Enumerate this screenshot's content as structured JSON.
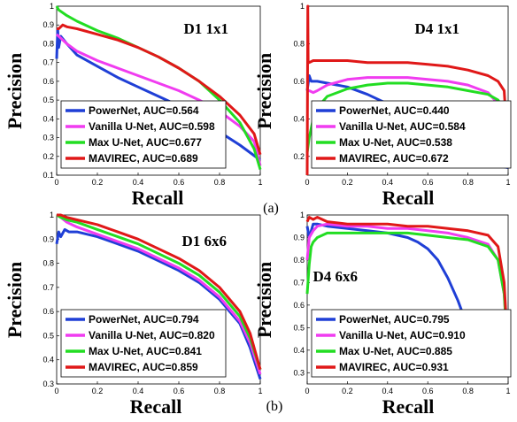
{
  "captions": {
    "top": "(a)",
    "bottom": "(b)"
  },
  "colors": {
    "PowerNet": "#1f3fd6",
    "Vanilla U-Net": "#f03cf0",
    "Max U-Net": "#22dd22",
    "MAVIREC": "#e01818"
  },
  "chart_data": [
    {
      "type": "line",
      "title": "D1 1x1",
      "xlabel": "Recall",
      "ylabel": "Precision",
      "xlim": [
        0,
        1
      ],
      "ylim": [
        0.1,
        1.0
      ],
      "xticks": [
        "0",
        "0.2",
        "0.4",
        "0.6",
        "0.8",
        "1"
      ],
      "yticks": [
        "0.1",
        "0.2",
        "0.3",
        "0.4",
        "0.5",
        "0.6",
        "0.7",
        "0.8",
        "0.9",
        "1"
      ],
      "legend_position": "bottom-left",
      "series": [
        {
          "name": "PowerNet",
          "legend": "PowerNet, AUC=0.564",
          "x": [
            0,
            0.005,
            0.01,
            0.02,
            0.05,
            0.1,
            0.2,
            0.3,
            0.4,
            0.5,
            0.6,
            0.7,
            0.8,
            0.9,
            1.0
          ],
          "y": [
            0.72,
            0.88,
            0.78,
            0.84,
            0.8,
            0.74,
            0.68,
            0.62,
            0.57,
            0.52,
            0.47,
            0.4,
            0.33,
            0.26,
            0.18
          ]
        },
        {
          "name": "Vanilla U-Net",
          "legend": "Vanilla U-Net, AUC=0.598",
          "x": [
            0,
            0.01,
            0.05,
            0.1,
            0.2,
            0.3,
            0.4,
            0.5,
            0.6,
            0.7,
            0.8,
            0.9,
            0.97,
            1.0
          ],
          "y": [
            0.85,
            0.84,
            0.8,
            0.76,
            0.71,
            0.67,
            0.63,
            0.59,
            0.55,
            0.5,
            0.44,
            0.36,
            0.28,
            0.15
          ]
        },
        {
          "name": "Max U-Net",
          "legend": "Max U-Net, AUC=0.677",
          "x": [
            0,
            0.01,
            0.05,
            0.1,
            0.2,
            0.3,
            0.4,
            0.5,
            0.6,
            0.7,
            0.8,
            0.9,
            0.97,
            1.0
          ],
          "y": [
            1.0,
            0.98,
            0.95,
            0.92,
            0.87,
            0.83,
            0.78,
            0.73,
            0.67,
            0.6,
            0.5,
            0.38,
            0.24,
            0.13
          ]
        },
        {
          "name": "MAVIREC",
          "legend": "MAVIREC, AUC=0.689",
          "x": [
            0,
            0.01,
            0.03,
            0.05,
            0.1,
            0.2,
            0.3,
            0.4,
            0.5,
            0.6,
            0.7,
            0.8,
            0.9,
            0.97,
            1.0
          ],
          "y": [
            0.88,
            0.88,
            0.9,
            0.89,
            0.88,
            0.85,
            0.82,
            0.78,
            0.73,
            0.67,
            0.6,
            0.52,
            0.42,
            0.32,
            0.21
          ]
        }
      ]
    },
    {
      "type": "line",
      "title": "D4 1x1",
      "xlabel": "Recall",
      "ylabel": "Precision",
      "xlim": [
        0,
        1
      ],
      "ylim": [
        0.1,
        1.0
      ],
      "xticks": [
        "0",
        "0.2",
        "0.4",
        "0.6",
        "0.8",
        "1"
      ],
      "yticks": [
        "0.2",
        "0.4",
        "0.6",
        "0.8",
        "1"
      ],
      "legend_position": "bottom-left",
      "series": [
        {
          "name": "PowerNet",
          "legend": "PowerNet, AUC=0.440",
          "x": [
            0,
            0.01,
            0.02,
            0.05,
            0.1,
            0.2,
            0.3,
            0.4,
            0.5,
            0.6,
            0.7,
            0.8,
            0.9,
            0.95,
            1.0
          ],
          "y": [
            0.55,
            0.63,
            0.6,
            0.6,
            0.59,
            0.57,
            0.53,
            0.48,
            0.42,
            0.35,
            0.28,
            0.21,
            0.17,
            0.15,
            0.14
          ]
        },
        {
          "name": "Vanilla U-Net",
          "legend": "Vanilla U-Net, AUC=0.584",
          "x": [
            0,
            0.01,
            0.03,
            0.05,
            0.1,
            0.2,
            0.3,
            0.4,
            0.5,
            0.6,
            0.7,
            0.8,
            0.9,
            0.95,
            1.0
          ],
          "y": [
            0.55,
            0.55,
            0.54,
            0.55,
            0.58,
            0.61,
            0.62,
            0.62,
            0.62,
            0.61,
            0.6,
            0.58,
            0.54,
            0.48,
            0.22
          ]
        },
        {
          "name": "Max U-Net",
          "legend": "Max U-Net, AUC=0.538",
          "x": [
            0,
            0.01,
            0.03,
            0.05,
            0.1,
            0.2,
            0.3,
            0.4,
            0.5,
            0.6,
            0.7,
            0.8,
            0.9,
            0.95,
            0.98,
            1.0
          ],
          "y": [
            0.22,
            0.3,
            0.4,
            0.46,
            0.52,
            0.56,
            0.58,
            0.59,
            0.59,
            0.58,
            0.57,
            0.55,
            0.53,
            0.5,
            0.45,
            0.18
          ]
        },
        {
          "name": "MAVIREC",
          "legend": "MAVIREC, AUC=0.672",
          "x": [
            0,
            0.003,
            0.005,
            0.01,
            0.03,
            0.05,
            0.1,
            0.2,
            0.3,
            0.4,
            0.5,
            0.6,
            0.7,
            0.8,
            0.9,
            0.95,
            0.98,
            1.0
          ],
          "y": [
            0.1,
            1.0,
            0.7,
            0.7,
            0.71,
            0.71,
            0.71,
            0.71,
            0.7,
            0.7,
            0.7,
            0.69,
            0.68,
            0.66,
            0.63,
            0.6,
            0.55,
            0.22
          ]
        }
      ]
    },
    {
      "type": "line",
      "title": "D1 6x6",
      "xlabel": "Recall",
      "ylabel": "Precision",
      "xlim": [
        0,
        1
      ],
      "ylim": [
        0.3,
        1.0
      ],
      "xticks": [
        "0",
        "0.2",
        "0.4",
        "0.6",
        "0.8",
        "1"
      ],
      "yticks": [
        "0.3",
        "0.4",
        "0.5",
        "0.6",
        "0.7",
        "0.8",
        "0.9",
        "1"
      ],
      "legend_position": "bottom-left",
      "series": [
        {
          "name": "PowerNet",
          "legend": "PowerNet, AUC=0.794",
          "x": [
            0,
            0.01,
            0.02,
            0.04,
            0.06,
            0.1,
            0.2,
            0.3,
            0.4,
            0.5,
            0.6,
            0.7,
            0.8,
            0.9,
            0.95,
            1.0
          ],
          "y": [
            0.88,
            0.93,
            0.91,
            0.94,
            0.93,
            0.93,
            0.91,
            0.88,
            0.85,
            0.81,
            0.77,
            0.72,
            0.65,
            0.55,
            0.45,
            0.32
          ]
        },
        {
          "name": "Vanilla U-Net",
          "legend": "Vanilla U-Net, AUC=0.820",
          "x": [
            0,
            0.02,
            0.05,
            0.1,
            0.2,
            0.3,
            0.4,
            0.5,
            0.6,
            0.7,
            0.8,
            0.9,
            0.95,
            1.0
          ],
          "y": [
            1.0,
            0.99,
            0.97,
            0.95,
            0.92,
            0.89,
            0.86,
            0.82,
            0.78,
            0.73,
            0.66,
            0.56,
            0.47,
            0.34
          ]
        },
        {
          "name": "Max U-Net",
          "legend": "Max U-Net, AUC=0.841",
          "x": [
            0,
            0.02,
            0.05,
            0.1,
            0.2,
            0.3,
            0.4,
            0.5,
            0.6,
            0.7,
            0.8,
            0.9,
            0.95,
            1.0
          ],
          "y": [
            1.0,
            0.99,
            0.98,
            0.97,
            0.94,
            0.91,
            0.88,
            0.84,
            0.8,
            0.75,
            0.68,
            0.58,
            0.49,
            0.36
          ]
        },
        {
          "name": "MAVIREC",
          "legend": "MAVIREC, AUC=0.859",
          "x": [
            0,
            0.02,
            0.05,
            0.1,
            0.2,
            0.3,
            0.4,
            0.5,
            0.6,
            0.7,
            0.8,
            0.9,
            0.95,
            1.0
          ],
          "y": [
            1.0,
            1.0,
            0.99,
            0.98,
            0.96,
            0.93,
            0.9,
            0.86,
            0.82,
            0.77,
            0.7,
            0.6,
            0.51,
            0.36
          ]
        }
      ]
    },
    {
      "type": "line",
      "title": "D4 6x6",
      "xlabel": "Recall",
      "ylabel": "Precision",
      "xlim": [
        0,
        1
      ],
      "ylim": [
        0.25,
        1.0
      ],
      "xticks": [
        "0",
        "0.2",
        "0.4",
        "0.6",
        "0.8",
        "1"
      ],
      "yticks": [
        "0.3",
        "0.4",
        "0.5",
        "0.6",
        "0.7",
        "0.8",
        "0.9",
        "1"
      ],
      "legend_position": "bottom-left",
      "series": [
        {
          "name": "PowerNet",
          "legend": "PowerNet, AUC=0.795",
          "x": [
            0,
            0.01,
            0.03,
            0.05,
            0.1,
            0.2,
            0.3,
            0.4,
            0.5,
            0.55,
            0.6,
            0.65,
            0.7,
            0.75,
            0.8,
            0.85,
            0.9,
            0.95,
            1.0
          ],
          "y": [
            0.95,
            0.9,
            0.96,
            0.96,
            0.95,
            0.94,
            0.93,
            0.92,
            0.9,
            0.88,
            0.85,
            0.8,
            0.72,
            0.62,
            0.5,
            0.42,
            0.37,
            0.33,
            0.3
          ]
        },
        {
          "name": "Vanilla U-Net",
          "legend": "Vanilla U-Net, AUC=0.910",
          "x": [
            0,
            0.01,
            0.03,
            0.05,
            0.1,
            0.2,
            0.3,
            0.4,
            0.5,
            0.6,
            0.7,
            0.8,
            0.9,
            0.95,
            0.98,
            1.0
          ],
          "y": [
            0.8,
            0.9,
            0.93,
            0.95,
            0.96,
            0.95,
            0.95,
            0.94,
            0.94,
            0.93,
            0.92,
            0.9,
            0.87,
            0.8,
            0.65,
            0.38
          ]
        },
        {
          "name": "Max U-Net",
          "legend": "Max U-Net, AUC=0.885",
          "x": [
            0,
            0.01,
            0.02,
            0.03,
            0.05,
            0.1,
            0.2,
            0.3,
            0.4,
            0.5,
            0.6,
            0.7,
            0.8,
            0.9,
            0.95,
            0.98,
            1.0
          ],
          "y": [
            0.65,
            0.78,
            0.86,
            0.88,
            0.9,
            0.92,
            0.92,
            0.92,
            0.92,
            0.92,
            0.91,
            0.9,
            0.89,
            0.86,
            0.8,
            0.65,
            0.35
          ]
        },
        {
          "name": "MAVIREC",
          "legend": "MAVIREC, AUC=0.931",
          "x": [
            0,
            0.01,
            0.03,
            0.05,
            0.1,
            0.2,
            0.3,
            0.4,
            0.5,
            0.6,
            0.7,
            0.8,
            0.9,
            0.95,
            0.98,
            1.0
          ],
          "y": [
            0.97,
            0.99,
            0.98,
            0.99,
            0.97,
            0.96,
            0.96,
            0.96,
            0.95,
            0.95,
            0.94,
            0.93,
            0.91,
            0.86,
            0.7,
            0.38
          ]
        }
      ]
    }
  ]
}
